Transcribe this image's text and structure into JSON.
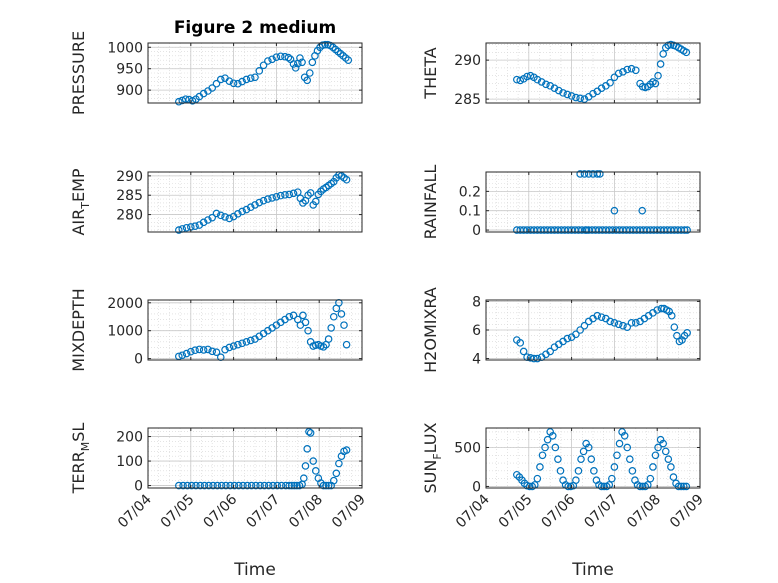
{
  "figure_title": "Figure 2 medium",
  "marker_color": "#0072BD",
  "chart_data": [
    {
      "type": "scatter",
      "title": "Figure 2 medium",
      "ylabel": "PRESSURE",
      "ylabel_sub": "",
      "ylabel_tail": "",
      "xlabel": "",
      "xticks": [
        "07/04",
        "07/05",
        "07/06",
        "07/07",
        "07/08",
        "07/09"
      ],
      "xlim": [
        0,
        5
      ],
      "ylim": [
        870,
        1010
      ],
      "yticks": [
        900,
        950,
        1000
      ],
      "ytick_labels": [
        "900",
        "950",
        "1000"
      ],
      "x": [
        0.72,
        0.8,
        0.88,
        0.96,
        1.04,
        1.12,
        1.2,
        1.3,
        1.4,
        1.5,
        1.6,
        1.7,
        1.8,
        1.9,
        2.0,
        2.1,
        2.2,
        2.3,
        2.4,
        2.5,
        2.6,
        2.7,
        2.8,
        2.9,
        3.0,
        3.1,
        3.2,
        3.28,
        3.33,
        3.4,
        3.45,
        3.5,
        3.55,
        3.6,
        3.66,
        3.72,
        3.78,
        3.84,
        3.9,
        3.96,
        4.02,
        4.08,
        4.14,
        4.2,
        4.26,
        4.32,
        4.38,
        4.44,
        4.5,
        4.56,
        4.62,
        4.68
      ],
      "y": [
        873,
        876,
        879,
        878,
        875,
        879,
        885,
        892,
        898,
        905,
        915,
        925,
        928,
        921,
        916,
        915,
        920,
        925,
        928,
        930,
        945,
        958,
        968,
        972,
        977,
        979,
        978,
        976,
        972,
        961,
        952,
        962,
        975,
        965,
        930,
        923,
        940,
        965,
        980,
        992,
        1000,
        1005,
        1006,
        1006,
        1004,
        1000,
        995,
        990,
        985,
        980,
        975,
        970
      ]
    },
    {
      "type": "scatter",
      "title": "",
      "ylabel": "THETA",
      "ylabel_sub": "",
      "ylabel_tail": "",
      "xlabel": "",
      "xticks": [
        "07/04",
        "07/05",
        "07/06",
        "07/07",
        "07/08",
        "07/09"
      ],
      "xlim": [
        0,
        5
      ],
      "ylim": [
        284.5,
        292.2
      ],
      "yticks": [
        285,
        290
      ],
      "ytick_labels": [
        "285",
        "290"
      ],
      "x": [
        0.72,
        0.8,
        0.88,
        0.96,
        1.04,
        1.12,
        1.2,
        1.3,
        1.4,
        1.5,
        1.6,
        1.7,
        1.8,
        1.9,
        2.0,
        2.1,
        2.2,
        2.3,
        2.4,
        2.5,
        2.6,
        2.7,
        2.8,
        2.9,
        3.0,
        3.1,
        3.2,
        3.3,
        3.4,
        3.5,
        3.6,
        3.66,
        3.72,
        3.78,
        3.84,
        3.9,
        3.96,
        4.02,
        4.08,
        4.14,
        4.2,
        4.26,
        4.32,
        4.38,
        4.44,
        4.5,
        4.56,
        4.62,
        4.68
      ],
      "y": [
        287.5,
        287.4,
        287.6,
        287.9,
        288.0,
        287.8,
        287.5,
        287.2,
        286.9,
        286.7,
        286.4,
        286.1,
        285.8,
        285.6,
        285.4,
        285.2,
        285.1,
        285.0,
        285.3,
        285.7,
        286.0,
        286.4,
        286.7,
        287.1,
        287.8,
        288.3,
        288.5,
        288.8,
        288.9,
        288.7,
        287.0,
        286.6,
        286.5,
        286.6,
        286.9,
        287.2,
        287.0,
        288.0,
        289.5,
        290.8,
        291.6,
        291.9,
        292.0,
        291.9,
        291.8,
        291.6,
        291.4,
        291.2,
        291.0
      ]
    },
    {
      "type": "scatter",
      "title": "",
      "ylabel": "AIR",
      "ylabel_sub": "T",
      "ylabel_tail": "EMP",
      "xlabel": "",
      "xticks": [
        "07/04",
        "07/05",
        "07/06",
        "07/07",
        "07/08",
        "07/09"
      ],
      "xlim": [
        0,
        5
      ],
      "ylim": [
        275.5,
        291
      ],
      "yticks": [
        280,
        285,
        290
      ],
      "ytick_labels": [
        "280",
        "285",
        "290"
      ],
      "x": [
        0.72,
        0.8,
        0.9,
        1.0,
        1.1,
        1.2,
        1.3,
        1.4,
        1.5,
        1.6,
        1.7,
        1.8,
        1.9,
        2.0,
        2.1,
        2.2,
        2.3,
        2.4,
        2.5,
        2.6,
        2.7,
        2.8,
        2.9,
        3.0,
        3.1,
        3.2,
        3.3,
        3.4,
        3.5,
        3.56,
        3.62,
        3.68,
        3.74,
        3.8,
        3.86,
        3.92,
        3.98,
        4.04,
        4.1,
        4.16,
        4.22,
        4.28,
        4.34,
        4.4,
        4.46,
        4.52,
        4.58,
        4.64
      ],
      "y": [
        276.0,
        276.3,
        276.6,
        276.8,
        277.0,
        277.3,
        278.0,
        278.6,
        279.2,
        280.3,
        279.8,
        279.4,
        279.0,
        279.5,
        280.2,
        280.8,
        281.3,
        281.9,
        282.5,
        283.1,
        283.6,
        284.0,
        284.3,
        284.6,
        284.9,
        285.1,
        285.2,
        285.5,
        285.8,
        284.2,
        283.0,
        283.6,
        285.0,
        285.6,
        282.5,
        283.4,
        285.2,
        286.0,
        286.6,
        287.0,
        287.5,
        288.0,
        288.5,
        289.5,
        290.2,
        290.0,
        289.5,
        289.0
      ]
    },
    {
      "type": "scatter",
      "title": "",
      "ylabel": "RAINFALL",
      "ylabel_sub": "",
      "ylabel_tail": "",
      "xlabel": "",
      "xticks": [
        "07/04",
        "07/05",
        "07/06",
        "07/07",
        "07/08",
        "07/09"
      ],
      "xlim": [
        0,
        5
      ],
      "ylim": [
        -0.01,
        0.3
      ],
      "yticks": [
        0,
        0.1,
        0.2
      ],
      "ytick_labels": [
        "0",
        "0.1",
        "0.2"
      ],
      "x": [
        0.72,
        0.8,
        0.88,
        0.96,
        1.04,
        1.12,
        1.2,
        1.28,
        1.36,
        1.44,
        1.52,
        1.6,
        1.68,
        1.76,
        1.84,
        1.92,
        2.0,
        2.08,
        2.16,
        2.24,
        2.32,
        2.4,
        2.48,
        2.56,
        2.64,
        2.72,
        2.8,
        2.88,
        2.96,
        3.04,
        3.12,
        3.2,
        3.28,
        3.36,
        3.44,
        3.52,
        3.6,
        3.68,
        3.76,
        3.84,
        3.92,
        4.0,
        4.08,
        4.16,
        4.24,
        4.32,
        4.4,
        4.48,
        4.56,
        4.64,
        4.7,
        2.2,
        2.3,
        2.4,
        2.5,
        2.6,
        2.66,
        2.35,
        3.0,
        3.65
      ],
      "y": [
        0,
        0,
        0,
        0,
        0,
        0,
        0,
        0,
        0,
        0,
        0,
        0,
        0,
        0,
        0,
        0,
        0,
        0,
        0,
        0,
        0,
        0,
        0,
        0,
        0,
        0,
        0,
        0,
        0,
        0,
        0,
        0,
        0,
        0,
        0,
        0,
        0,
        0,
        0,
        0,
        0,
        0,
        0,
        0,
        0,
        0,
        0,
        0,
        0,
        0,
        0,
        0.29,
        0.29,
        0.29,
        0.29,
        0.29,
        0.29,
        0,
        0.1,
        0.1
      ]
    },
    {
      "type": "scatter",
      "title": "",
      "ylabel": "MIXDEPTH",
      "ylabel_sub": "",
      "ylabel_tail": "",
      "xlabel": "",
      "xticks": [
        "07/04",
        "07/05",
        "07/06",
        "07/07",
        "07/08",
        "07/09"
      ],
      "xlim": [
        0,
        5
      ],
      "ylim": [
        -50,
        2100
      ],
      "yticks": [
        0,
        1000,
        2000
      ],
      "ytick_labels": [
        "0",
        "1000",
        "2000"
      ],
      "x": [
        0.72,
        0.8,
        0.9,
        1.0,
        1.1,
        1.2,
        1.3,
        1.4,
        1.5,
        1.6,
        1.7,
        1.8,
        1.9,
        2.0,
        2.1,
        2.2,
        2.3,
        2.4,
        2.5,
        2.6,
        2.7,
        2.8,
        2.9,
        3.0,
        3.1,
        3.2,
        3.3,
        3.4,
        3.5,
        3.56,
        3.62,
        3.68,
        3.74,
        3.8,
        3.86,
        3.92,
        3.98,
        4.04,
        4.1,
        4.16,
        4.22,
        4.28,
        4.34,
        4.4,
        4.46,
        4.52,
        4.58,
        4.64
      ],
      "y": [
        80,
        120,
        180,
        250,
        300,
        330,
        310,
        330,
        260,
        230,
        50,
        320,
        400,
        450,
        500,
        550,
        600,
        650,
        700,
        800,
        900,
        1000,
        1100,
        1200,
        1300,
        1400,
        1500,
        1550,
        1400,
        1200,
        1550,
        1300,
        1000,
        600,
        450,
        480,
        500,
        450,
        420,
        500,
        700,
        1100,
        1500,
        1800,
        2000,
        1600,
        1200,
        500
      ]
    },
    {
      "type": "scatter",
      "title": "",
      "ylabel": "H2OMIXRA",
      "ylabel_sub": "",
      "ylabel_tail": "",
      "xlabel": "",
      "xticks": [
        "07/04",
        "07/05",
        "07/06",
        "07/07",
        "07/08",
        "07/09"
      ],
      "xlim": [
        0,
        5
      ],
      "ylim": [
        3.9,
        8.1
      ],
      "yticks": [
        4,
        6,
        8
      ],
      "ytick_labels": [
        "4",
        "6",
        "8"
      ],
      "x": [
        0.72,
        0.8,
        0.88,
        0.96,
        1.04,
        1.12,
        1.2,
        1.3,
        1.4,
        1.5,
        1.6,
        1.7,
        1.8,
        1.9,
        2.0,
        2.1,
        2.2,
        2.3,
        2.4,
        2.5,
        2.6,
        2.7,
        2.8,
        2.9,
        3.0,
        3.1,
        3.2,
        3.3,
        3.4,
        3.5,
        3.6,
        3.7,
        3.8,
        3.9,
        4.0,
        4.1,
        4.16,
        4.22,
        4.28,
        4.34,
        4.4,
        4.46,
        4.52,
        4.58,
        4.64,
        4.7
      ],
      "y": [
        5.3,
        5.1,
        4.5,
        4.1,
        4.05,
        4.0,
        4.0,
        4.1,
        4.3,
        4.5,
        4.8,
        5.0,
        5.2,
        5.4,
        5.5,
        5.7,
        6.0,
        6.3,
        6.6,
        6.8,
        7.0,
        6.9,
        6.8,
        6.6,
        6.5,
        6.4,
        6.3,
        6.2,
        6.5,
        6.5,
        6.6,
        6.8,
        7.0,
        7.2,
        7.4,
        7.5,
        7.5,
        7.4,
        7.3,
        7.0,
        6.2,
        5.6,
        5.2,
        5.3,
        5.6,
        5.8
      ]
    },
    {
      "type": "scatter",
      "title": "",
      "ylabel": "TERR",
      "ylabel_sub": "M",
      "ylabel_tail": "SL",
      "xlabel": "Time",
      "xticks": [
        "07/04",
        "07/05",
        "07/06",
        "07/07",
        "07/08",
        "07/09"
      ],
      "xlim": [
        0,
        5
      ],
      "ylim": [
        -10,
        235
      ],
      "yticks": [
        0,
        100,
        200
      ],
      "ytick_labels": [
        "0",
        "100",
        "200"
      ],
      "x": [
        0.72,
        0.82,
        0.92,
        1.02,
        1.12,
        1.22,
        1.32,
        1.42,
        1.52,
        1.62,
        1.72,
        1.82,
        1.92,
        2.02,
        2.12,
        2.22,
        2.32,
        2.42,
        2.52,
        2.62,
        2.72,
        2.82,
        2.92,
        3.02,
        3.12,
        3.22,
        3.3,
        3.36,
        3.42,
        3.48,
        3.54,
        3.6,
        3.64,
        3.68,
        3.72,
        3.76,
        3.8,
        3.86,
        3.92,
        3.98,
        4.04,
        4.1,
        4.16,
        4.22,
        4.28,
        4.34,
        4.4,
        4.46,
        4.52,
        4.58,
        4.64
      ],
      "y": [
        0,
        0,
        0,
        0,
        0,
        0,
        0,
        0,
        0,
        0,
        0,
        0,
        0,
        0,
        0,
        0,
        0,
        0,
        0,
        0,
        0,
        0,
        0,
        0,
        0,
        0,
        0,
        0,
        0,
        0,
        0,
        5,
        30,
        80,
        150,
        220,
        215,
        100,
        60,
        30,
        10,
        0,
        0,
        0,
        0,
        20,
        50,
        90,
        120,
        140,
        145
      ]
    },
    {
      "type": "scatter",
      "title": "",
      "ylabel": "SUN",
      "ylabel_sub": "F",
      "ylabel_tail": "LUX",
      "xlabel": "Time",
      "xticks": [
        "07/04",
        "07/05",
        "07/06",
        "07/07",
        "07/08",
        "07/09"
      ],
      "xlim": [
        0,
        5
      ],
      "ylim": [
        -20,
        750
      ],
      "yticks": [
        0,
        500
      ],
      "ytick_labels": [
        "0",
        "500"
      ],
      "x": [
        0.72,
        0.78,
        0.84,
        0.9,
        0.96,
        1.02,
        1.08,
        1.14,
        1.2,
        1.26,
        1.32,
        1.38,
        1.44,
        1.5,
        1.56,
        1.62,
        1.68,
        1.74,
        1.8,
        1.86,
        1.92,
        1.98,
        2.04,
        2.1,
        2.16,
        2.22,
        2.28,
        2.34,
        2.4,
        2.46,
        2.52,
        2.58,
        2.64,
        2.7,
        2.76,
        2.82,
        2.88,
        2.94,
        3.0,
        3.06,
        3.12,
        3.18,
        3.24,
        3.3,
        3.36,
        3.42,
        3.48,
        3.54,
        3.6,
        3.66,
        3.72,
        3.78,
        3.84,
        3.9,
        3.96,
        4.02,
        4.08,
        4.14,
        4.2,
        4.26,
        4.32,
        4.38,
        4.44,
        4.5,
        4.56,
        4.62,
        4.68
      ],
      "y": [
        150,
        120,
        80,
        40,
        10,
        0,
        0,
        20,
        100,
        250,
        400,
        500,
        600,
        700,
        650,
        500,
        350,
        200,
        80,
        20,
        0,
        0,
        10,
        80,
        200,
        350,
        450,
        550,
        500,
        350,
        200,
        80,
        20,
        0,
        0,
        0,
        20,
        100,
        250,
        400,
        550,
        700,
        650,
        500,
        350,
        200,
        80,
        20,
        0,
        0,
        0,
        20,
        100,
        250,
        400,
        500,
        600,
        550,
        450,
        350,
        250,
        120,
        40,
        0,
        0,
        0,
        0
      ]
    }
  ]
}
